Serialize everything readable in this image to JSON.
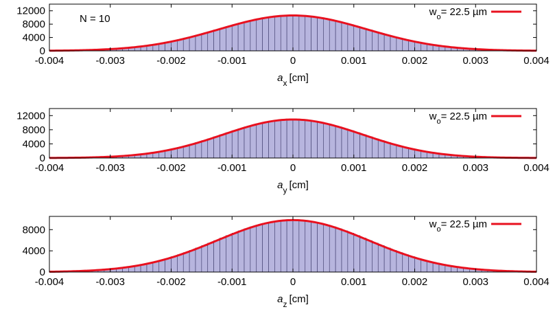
{
  "chart_data": [
    {
      "type": "bar",
      "panel": "a_x",
      "xlabel_var": "a",
      "xlabel_sub": "x",
      "xlabel_unit": "[cm]",
      "annotation": "N = 10",
      "xlim": [
        -0.004,
        0.004
      ],
      "ylim": [
        0,
        14000
      ],
      "xticks": [
        "-0.004",
        "-0.003",
        "-0.002",
        "-0.001",
        "0",
        "0.001",
        "0.002",
        "0.003",
        "0.004"
      ],
      "yticks": [
        "0",
        "4000",
        "8000",
        "12000"
      ],
      "histogram": {
        "bin_width": 0.0001,
        "peak": 10600,
        "sigma": 0.00122
      },
      "series": [
        {
          "name": "wo= 22.5 µm",
          "legend_main": "w",
          "legend_sub": "o",
          "legend_rest": "= 22.5 µm",
          "type": "line",
          "color": "#e8111f",
          "peak": 10600,
          "sigma": 0.00122
        }
      ],
      "bar_fill": "#b7b5de",
      "bar_edge": "#3c3a6a",
      "legend": "top-right"
    },
    {
      "type": "bar",
      "panel": "a_y",
      "xlabel_var": "a",
      "xlabel_sub": "y",
      "xlabel_unit": "[cm]",
      "annotation": "",
      "xlim": [
        -0.004,
        0.004
      ],
      "ylim": [
        0,
        14000
      ],
      "xticks": [
        "-0.004",
        "-0.003",
        "-0.002",
        "-0.001",
        "0",
        "0.001",
        "0.002",
        "0.003",
        "0.004"
      ],
      "yticks": [
        "0",
        "4000",
        "8000",
        "12000"
      ],
      "histogram": {
        "bin_width": 0.0001,
        "peak": 10900,
        "sigma": 0.00115
      },
      "series": [
        {
          "name": "wo= 22.5 µm",
          "legend_main": "w",
          "legend_sub": "o",
          "legend_rest": "= 22.5 µm",
          "type": "line",
          "color": "#e8111f",
          "peak": 10900,
          "sigma": 0.00115
        }
      ],
      "bar_fill": "#b7b5de",
      "bar_edge": "#3c3a6a",
      "legend": "top-right"
    },
    {
      "type": "bar",
      "panel": "a_z",
      "xlabel_var": "a",
      "xlabel_sub": "z",
      "xlabel_unit": "[cm]",
      "annotation": "",
      "xlim": [
        -0.004,
        0.004
      ],
      "ylim": [
        0,
        10500
      ],
      "xticks": [
        "-0.004",
        "-0.003",
        "-0.002",
        "-0.001",
        "0",
        "0.001",
        "0.002",
        "0.003",
        "0.004"
      ],
      "yticks": [
        "0",
        "4000",
        "8000"
      ],
      "histogram": {
        "bin_width": 0.0001,
        "peak": 9800,
        "sigma": 0.00125
      },
      "series": [
        {
          "name": "wo= 22.5 µm",
          "legend_main": "w",
          "legend_sub": "o",
          "legend_rest": "= 22.5 µm",
          "type": "line",
          "color": "#e8111f",
          "peak": 9800,
          "sigma": 0.00125
        }
      ],
      "bar_fill": "#b7b5de",
      "bar_edge": "#3c3a6a",
      "legend": "top-right"
    }
  ]
}
